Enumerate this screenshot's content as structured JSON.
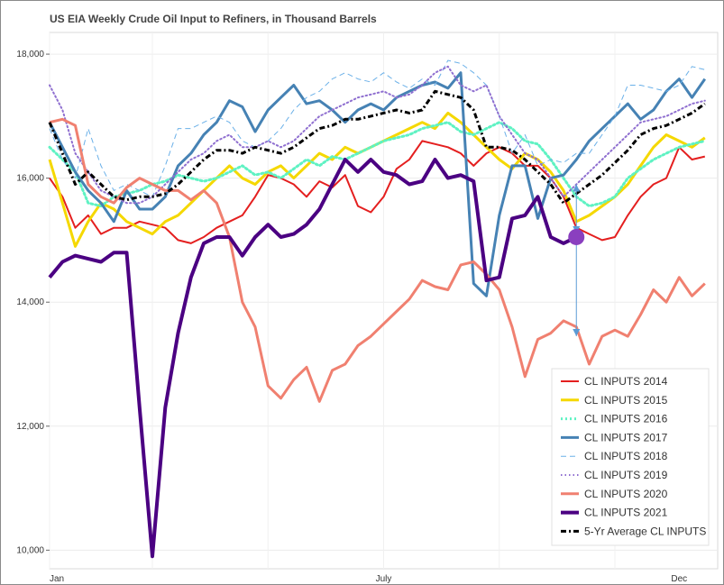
{
  "colors": {
    "CL INPUTS 2014": "#e41f1f",
    "CL INPUTS 2015": "#f5d800",
    "CL INPUTS 2016": "#5ff2c3",
    "CL INPUTS 2017": "#4682b4",
    "CL INPUTS 2018": "#6ab0e8",
    "CL INPUTS 2019": "#8f6fd0",
    "CL INPUTS 2020": "#f08070",
    "CL INPUTS 2021": "#4b0082",
    "5-Yr Average CL INPUTS": "#000000",
    "marker": "#8a3fbf",
    "range_arrow": "#5b9bd5"
  },
  "chart_data": {
    "type": "line",
    "title": "US EIA Weekly Crude Oil Input to Refiners, in Thousand Barrels",
    "xlabel": "",
    "ylabel": "",
    "x_ticks": [
      "Jan",
      "July",
      "Dec"
    ],
    "y_ticks": [
      "10,000",
      "12,000",
      "14,000",
      "16,000",
      "18,000"
    ],
    "ylim": [
      9700,
      18350
    ],
    "x_unit": "week of year",
    "xlim": [
      1,
      53
    ],
    "grid": true,
    "legend_position": "bottom-right",
    "series": [
      {
        "name": "CL INPUTS 2014",
        "style": "solid",
        "width": 2,
        "x": [
          1,
          2,
          3,
          4,
          5,
          6,
          7,
          8,
          9,
          10,
          11,
          12,
          13,
          14,
          15,
          16,
          17,
          18,
          19,
          20,
          21,
          22,
          23,
          24,
          25,
          26,
          27,
          28,
          29,
          30,
          31,
          32,
          33,
          34,
          35,
          36,
          37,
          38,
          39,
          40,
          41,
          42,
          43,
          44,
          45,
          46,
          47,
          48,
          49,
          50,
          51,
          52
        ],
        "values": [
          16000,
          15700,
          15200,
          15400,
          15100,
          15200,
          15200,
          15300,
          15250,
          15200,
          15000,
          14950,
          15050,
          15200,
          15300,
          15400,
          15700,
          16050,
          16000,
          15900,
          15700,
          15950,
          15850,
          16050,
          15550,
          15450,
          15700,
          16150,
          16300,
          16600,
          16550,
          16500,
          16400,
          16200,
          16400,
          16500,
          16400,
          16200,
          16200,
          16000,
          15700,
          15200,
          15100,
          15000,
          15050,
          15400,
          15700,
          15900,
          16000,
          16500,
          16300,
          16350
        ]
      },
      {
        "name": "CL INPUTS 2015",
        "style": "solid",
        "width": 3,
        "x": [
          1,
          2,
          3,
          4,
          5,
          6,
          7,
          8,
          9,
          10,
          11,
          12,
          13,
          14,
          15,
          16,
          17,
          18,
          19,
          20,
          21,
          22,
          23,
          24,
          25,
          26,
          27,
          28,
          29,
          30,
          31,
          32,
          33,
          34,
          35,
          36,
          37,
          38,
          39,
          40,
          41,
          42,
          43,
          44,
          45,
          46,
          47,
          48,
          49,
          50,
          51,
          52
        ],
        "values": [
          16300,
          15600,
          14900,
          15300,
          15600,
          15500,
          15300,
          15200,
          15100,
          15300,
          15400,
          15600,
          15800,
          16000,
          16200,
          16000,
          15900,
          16100,
          16200,
          16000,
          16200,
          16400,
          16300,
          16500,
          16400,
          16500,
          16600,
          16700,
          16800,
          16900,
          16800,
          17050,
          16900,
          16700,
          16500,
          16300,
          16150,
          16400,
          16300,
          16100,
          15800,
          15300,
          15400,
          15550,
          15700,
          15900,
          16200,
          16500,
          16700,
          16600,
          16500,
          16650
        ]
      },
      {
        "name": "CL INPUTS 2016",
        "style": "dotted",
        "width": 3,
        "x": [
          1,
          2,
          3,
          4,
          5,
          6,
          7,
          8,
          9,
          10,
          11,
          12,
          13,
          14,
          15,
          16,
          17,
          18,
          19,
          20,
          21,
          22,
          23,
          24,
          25,
          26,
          27,
          28,
          29,
          30,
          31,
          32,
          33,
          34,
          35,
          36,
          37,
          38,
          39,
          40,
          41,
          42,
          43,
          44,
          45,
          46,
          47,
          48,
          49,
          50,
          51,
          52
        ],
        "values": [
          16500,
          16300,
          16100,
          15600,
          15550,
          15700,
          15750,
          15800,
          15900,
          15950,
          16050,
          16000,
          15950,
          16000,
          16100,
          16200,
          16050,
          16100,
          16000,
          16150,
          16300,
          16200,
          16350,
          16300,
          16400,
          16500,
          16600,
          16650,
          16700,
          16800,
          16850,
          16900,
          16750,
          16700,
          16800,
          16900,
          16800,
          16600,
          16550,
          16300,
          16000,
          15700,
          15550,
          15600,
          15700,
          16000,
          16150,
          16300,
          16400,
          16500,
          16550,
          16600
        ]
      },
      {
        "name": "CL INPUTS 2017",
        "style": "solid",
        "width": 3,
        "x": [
          1,
          2,
          3,
          4,
          5,
          6,
          7,
          8,
          9,
          10,
          11,
          12,
          13,
          14,
          15,
          16,
          17,
          18,
          19,
          20,
          21,
          22,
          23,
          24,
          25,
          26,
          27,
          28,
          29,
          30,
          31,
          32,
          33,
          34,
          35,
          36,
          37,
          38,
          39,
          40,
          41,
          42,
          43,
          44,
          45,
          46,
          47,
          48,
          49,
          50,
          51,
          52
        ],
        "values": [
          16900,
          16500,
          16100,
          15800,
          15600,
          15300,
          15800,
          15500,
          15500,
          15700,
          16200,
          16400,
          16700,
          16900,
          17250,
          17150,
          16750,
          17100,
          17300,
          17500,
          17200,
          17250,
          17100,
          16900,
          17100,
          17200,
          17100,
          17300,
          17400,
          17500,
          17550,
          17450,
          17700,
          14300,
          14100,
          15400,
          16200,
          16200,
          15350,
          16000,
          16050,
          16300,
          16600,
          16800,
          17000,
          17200,
          16950,
          17100,
          17400,
          17600,
          17300,
          17600
        ]
      },
      {
        "name": "CL INPUTS 2018",
        "style": "dashed",
        "width": 1,
        "x": [
          1,
          2,
          3,
          4,
          5,
          6,
          7,
          8,
          9,
          10,
          11,
          12,
          13,
          14,
          15,
          16,
          17,
          18,
          19,
          20,
          21,
          22,
          23,
          24,
          25,
          26,
          27,
          28,
          29,
          30,
          31,
          32,
          33,
          34,
          35,
          36,
          37,
          38,
          39,
          40,
          41,
          42,
          43,
          44,
          45,
          46,
          47,
          48,
          49,
          50,
          51,
          52
        ],
        "values": [
          16800,
          16300,
          16000,
          16800,
          16200,
          15800,
          15900,
          15800,
          15700,
          16200,
          16800,
          16800,
          16900,
          17000,
          16900,
          16600,
          16500,
          16600,
          16800,
          17100,
          17300,
          17400,
          17600,
          17700,
          17600,
          17550,
          17700,
          17550,
          17450,
          17600,
          17500,
          17900,
          17850,
          17700,
          17500,
          17000,
          16400,
          16700,
          16200,
          16300,
          16250,
          16400,
          16400,
          16700,
          17000,
          17500,
          17500,
          17450,
          17400,
          17500,
          17800,
          17750
        ]
      },
      {
        "name": "CL INPUTS 2019",
        "style": "dotted",
        "width": 2,
        "x": [
          1,
          2,
          3,
          4,
          5,
          6,
          7,
          8,
          9,
          10,
          11,
          12,
          13,
          14,
          15,
          16,
          17,
          18,
          19,
          20,
          21,
          22,
          23,
          24,
          25,
          26,
          27,
          28,
          29,
          30,
          31,
          32,
          33,
          34,
          35,
          36,
          37,
          38,
          39,
          40,
          41,
          42,
          43,
          44,
          45,
          46,
          47,
          48,
          49,
          50,
          51,
          52
        ],
        "values": [
          17500,
          17100,
          16400,
          16100,
          15800,
          15700,
          15600,
          15600,
          15700,
          15900,
          16100,
          16300,
          16400,
          16600,
          16700,
          16500,
          16500,
          16600,
          16500,
          16600,
          16800,
          17000,
          17100,
          17200,
          17300,
          17350,
          17400,
          17300,
          17350,
          17500,
          17700,
          17800,
          17500,
          17400,
          17500,
          17000,
          16700,
          16400,
          16300,
          16000,
          15700,
          15900,
          16100,
          16300,
          16500,
          16700,
          16900,
          16950,
          17000,
          17100,
          17200,
          17250
        ]
      },
      {
        "name": "CL INPUTS 2020",
        "style": "solid",
        "width": 3,
        "x": [
          1,
          2,
          3,
          4,
          5,
          6,
          7,
          8,
          9,
          10,
          11,
          12,
          13,
          14,
          15,
          16,
          17,
          18,
          19,
          20,
          21,
          22,
          23,
          24,
          25,
          26,
          27,
          28,
          29,
          30,
          31,
          32,
          33,
          34,
          35,
          36,
          37,
          38,
          39,
          40,
          41,
          42,
          43,
          44,
          45,
          46,
          47,
          48,
          49,
          50,
          51,
          52
        ],
        "values": [
          16900,
          16950,
          16850,
          15900,
          15700,
          15600,
          15850,
          16000,
          15900,
          15800,
          15800,
          15650,
          15800,
          15600,
          15050,
          14000,
          13600,
          12650,
          12450,
          12750,
          12950,
          12400,
          12900,
          13000,
          13300,
          13450,
          13650,
          13850,
          14050,
          14350,
          14250,
          14200,
          14600,
          14650,
          14450,
          14200,
          13600,
          12800,
          13400,
          13500,
          13700,
          13600,
          13000,
          13450,
          13550,
          13450,
          13800,
          14200,
          14000,
          14400,
          14100,
          14300
        ]
      },
      {
        "name": "CL INPUTS 2021",
        "style": "solid",
        "width": 4,
        "x": [
          1,
          2,
          3,
          4,
          5,
          6,
          7,
          8,
          9,
          10,
          11,
          12,
          13,
          14,
          15,
          16,
          17,
          18,
          19,
          20,
          21,
          22,
          23,
          24,
          25,
          26,
          27,
          28,
          29,
          30,
          31,
          32,
          33,
          34,
          35,
          36,
          37,
          38,
          39,
          40,
          41,
          42
        ],
        "values": [
          14400,
          14650,
          14750,
          14700,
          14650,
          14800,
          14800,
          12300,
          9900,
          12300,
          13500,
          14400,
          14950,
          15050,
          15050,
          14750,
          15050,
          15250,
          15050,
          15100,
          15250,
          15500,
          15900,
          16300,
          16100,
          16300,
          16100,
          16050,
          15900,
          15950,
          16300,
          16000,
          16050,
          15950,
          14350,
          14400,
          15350,
          15400,
          15700,
          15050,
          14950,
          15050
        ]
      },
      {
        "name": "5-Yr Average CL INPUTS",
        "style": "dashdot",
        "width": 3,
        "x": [
          1,
          2,
          3,
          4,
          5,
          6,
          7,
          8,
          9,
          10,
          11,
          12,
          13,
          14,
          15,
          16,
          17,
          18,
          19,
          20,
          21,
          22,
          23,
          24,
          25,
          26,
          27,
          28,
          29,
          30,
          31,
          32,
          33,
          34,
          35,
          36,
          37,
          38,
          39,
          40,
          41,
          42,
          43,
          44,
          45,
          46,
          47,
          48,
          49,
          50,
          51,
          52
        ],
        "values": [
          16900,
          16400,
          15900,
          16100,
          15900,
          15700,
          15650,
          15700,
          15700,
          15750,
          15900,
          16100,
          16300,
          16450,
          16450,
          16400,
          16500,
          16450,
          16400,
          16500,
          16650,
          16800,
          16850,
          16950,
          16950,
          17000,
          17050,
          17100,
          17050,
          17100,
          17400,
          17350,
          17300,
          17100,
          16500,
          16500,
          16450,
          16300,
          16100,
          15900,
          15600,
          15750,
          15900,
          16050,
          16250,
          16450,
          16700,
          16800,
          16850,
          16950,
          17050,
          17200
        ]
      }
    ],
    "annotations": {
      "current_marker": {
        "x": 42,
        "value": 15050
      },
      "range_arrow": {
        "x": 42,
        "low": 13450,
        "high": 15900
      }
    }
  },
  "legend": {
    "items": [
      {
        "label": "CL INPUTS 2014",
        "style": "solid",
        "width": 2
      },
      {
        "label": "CL INPUTS 2015",
        "style": "solid",
        "width": 3
      },
      {
        "label": "CL INPUTS 2016",
        "style": "dotted",
        "width": 3
      },
      {
        "label": "CL INPUTS 2017",
        "style": "solid",
        "width": 3
      },
      {
        "label": "CL INPUTS 2018",
        "style": "dashed",
        "width": 1
      },
      {
        "label": "CL INPUTS 2019",
        "style": "dotted",
        "width": 2
      },
      {
        "label": "CL INPUTS 2020",
        "style": "solid",
        "width": 3
      },
      {
        "label": "CL INPUTS 2021",
        "style": "solid",
        "width": 4
      },
      {
        "label": "5-Yr Average CL INPUTS",
        "style": "dashdot",
        "width": 3
      }
    ]
  }
}
